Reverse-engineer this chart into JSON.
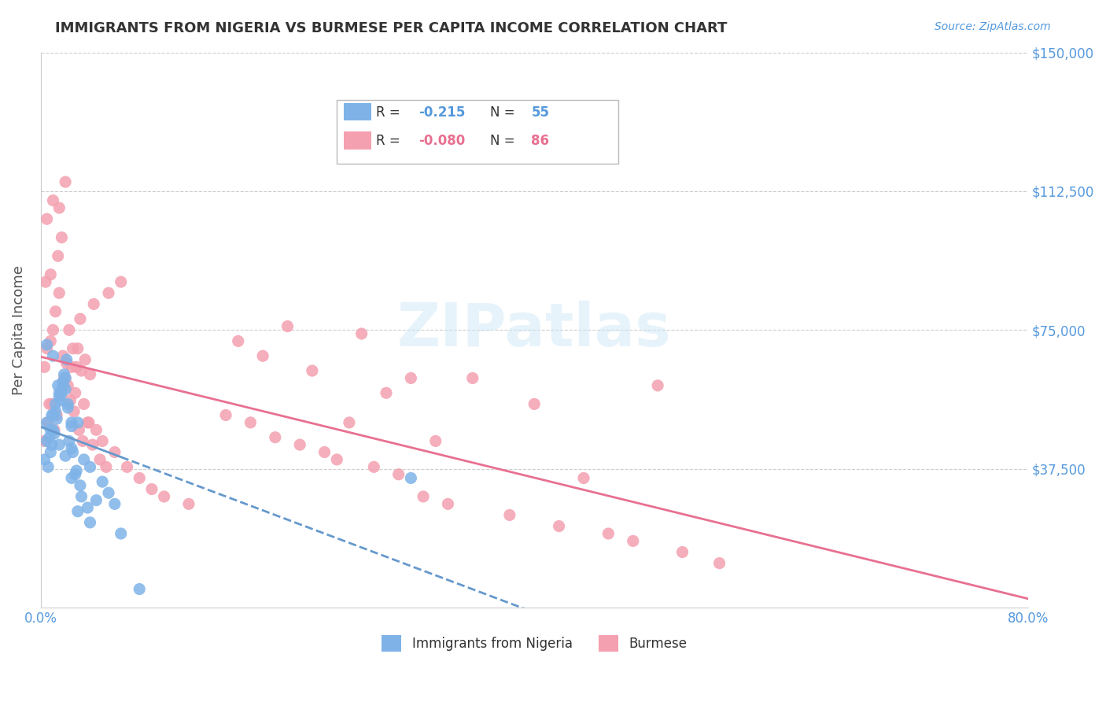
{
  "title": "IMMIGRANTS FROM NIGERIA VS BURMESE PER CAPITA INCOME CORRELATION CHART",
  "source": "Source: ZipAtlas.com",
  "xlabel": "",
  "ylabel": "Per Capita Income",
  "xmin": 0.0,
  "xmax": 0.8,
  "ymin": 0,
  "ymax": 150000,
  "yticks": [
    0,
    37500,
    75000,
    112500,
    150000
  ],
  "ytick_labels": [
    "",
    "$37,500",
    "$75,000",
    "$112,500",
    "$150,000"
  ],
  "xticks": [
    0.0,
    0.1,
    0.2,
    0.3,
    0.4,
    0.5,
    0.6,
    0.7,
    0.8
  ],
  "xtick_labels": [
    "0.0%",
    "",
    "",
    "",
    "",
    "",
    "",
    "",
    "80.0%"
  ],
  "grid_color": "#cccccc",
  "bg_color": "#ffffff",
  "blue_color": "#7fb3e8",
  "pink_color": "#f4a0b0",
  "blue_line_color": "#6699cc",
  "pink_line_color": "#e87090",
  "axis_label_color": "#5599dd",
  "title_color": "#333333",
  "watermark": "ZIPatlas",
  "series1_label": "Immigrants from Nigeria",
  "series2_label": "Burmese",
  "blue_R": "-0.215",
  "blue_N": "55",
  "pink_R": "-0.080",
  "pink_N": "86",
  "blue_scatter_x": [
    0.005,
    0.008,
    0.01,
    0.012,
    0.015,
    0.018,
    0.02,
    0.022,
    0.025,
    0.005,
    0.008,
    0.01,
    0.012,
    0.015,
    0.018,
    0.02,
    0.022,
    0.025,
    0.007,
    0.009,
    0.011,
    0.013,
    0.016,
    0.019,
    0.021,
    0.023,
    0.03,
    0.035,
    0.04,
    0.025,
    0.028,
    0.032,
    0.05,
    0.055,
    0.06,
    0.3,
    0.003,
    0.006,
    0.009,
    0.014,
    0.017,
    0.026,
    0.029,
    0.033,
    0.038,
    0.045,
    0.005,
    0.01,
    0.015,
    0.02,
    0.025,
    0.03,
    0.04,
    0.065,
    0.08
  ],
  "blue_scatter_y": [
    50000,
    48000,
    52000,
    55000,
    58000,
    60000,
    62000,
    55000,
    50000,
    45000,
    42000,
    48000,
    53000,
    57000,
    61000,
    59000,
    54000,
    49000,
    46000,
    44000,
    47000,
    51000,
    56000,
    63000,
    67000,
    45000,
    50000,
    40000,
    38000,
    43000,
    36000,
    33000,
    34000,
    31000,
    28000,
    35000,
    40000,
    38000,
    52000,
    60000,
    58000,
    42000,
    37000,
    30000,
    27000,
    29000,
    71000,
    68000,
    44000,
    41000,
    35000,
    26000,
    23000,
    20000,
    5000
  ],
  "pink_scatter_x": [
    0.003,
    0.005,
    0.007,
    0.008,
    0.01,
    0.012,
    0.015,
    0.018,
    0.02,
    0.022,
    0.025,
    0.028,
    0.03,
    0.033,
    0.036,
    0.04,
    0.003,
    0.006,
    0.009,
    0.011,
    0.013,
    0.016,
    0.019,
    0.021,
    0.024,
    0.027,
    0.031,
    0.034,
    0.038,
    0.042,
    0.048,
    0.053,
    0.004,
    0.008,
    0.014,
    0.017,
    0.023,
    0.026,
    0.029,
    0.035,
    0.039,
    0.045,
    0.05,
    0.06,
    0.07,
    0.08,
    0.09,
    0.1,
    0.12,
    0.25,
    0.3,
    0.4,
    0.5,
    0.005,
    0.01,
    0.015,
    0.02,
    0.032,
    0.043,
    0.055,
    0.065,
    0.2,
    0.35,
    0.32,
    0.15,
    0.16,
    0.18,
    0.22,
    0.26,
    0.28,
    0.17,
    0.19,
    0.21,
    0.23,
    0.24,
    0.27,
    0.29,
    0.31,
    0.33,
    0.38,
    0.42,
    0.46,
    0.44,
    0.48,
    0.52,
    0.55
  ],
  "pink_scatter_y": [
    65000,
    70000,
    55000,
    72000,
    75000,
    80000,
    85000,
    68000,
    62000,
    60000,
    65000,
    58000,
    70000,
    64000,
    67000,
    63000,
    45000,
    50000,
    55000,
    48000,
    52000,
    58000,
    62000,
    66000,
    56000,
    53000,
    48000,
    45000,
    50000,
    44000,
    40000,
    38000,
    88000,
    90000,
    95000,
    100000,
    75000,
    70000,
    65000,
    55000,
    50000,
    48000,
    45000,
    42000,
    38000,
    35000,
    32000,
    30000,
    28000,
    50000,
    62000,
    55000,
    60000,
    105000,
    110000,
    108000,
    115000,
    78000,
    82000,
    85000,
    88000,
    76000,
    62000,
    45000,
    52000,
    72000,
    68000,
    64000,
    74000,
    58000,
    50000,
    46000,
    44000,
    42000,
    40000,
    38000,
    36000,
    30000,
    28000,
    25000,
    22000,
    20000,
    35000,
    18000,
    15000,
    12000
  ]
}
